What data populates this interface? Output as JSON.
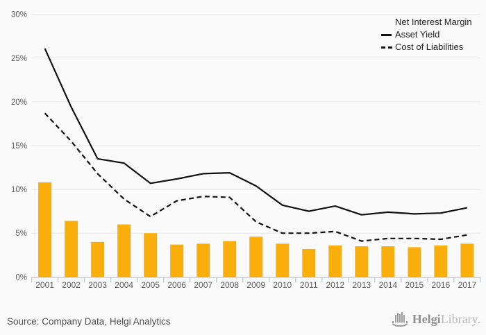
{
  "chart_data": {
    "type": "bar",
    "title": "",
    "categories": [
      "2001",
      "2002",
      "2003",
      "2004",
      "2005",
      "2006",
      "2007",
      "2008",
      "2009",
      "2010",
      "2011",
      "2012",
      "2013",
      "2014",
      "2015",
      "2016",
      "2017"
    ],
    "series": [
      {
        "name": "Net Interest Margin",
        "type": "bar",
        "color": "#F9AE0C",
        "values": [
          10.8,
          6.4,
          4.0,
          6.0,
          5.0,
          3.7,
          3.8,
          4.1,
          4.6,
          3.8,
          3.2,
          3.6,
          3.5,
          3.5,
          3.4,
          3.6,
          3.8
        ]
      },
      {
        "name": "Asset Yield",
        "type": "line",
        "line_style": "solid",
        "color": "#111111",
        "values": [
          26.1,
          19.4,
          13.5,
          13.0,
          10.7,
          11.2,
          11.8,
          11.9,
          10.4,
          8.2,
          7.5,
          8.1,
          7.1,
          7.4,
          7.2,
          7.3,
          7.9
        ]
      },
      {
        "name": "Cost of Liabilities",
        "type": "line",
        "line_style": "dashed",
        "color": "#111111",
        "values": [
          18.7,
          15.5,
          11.8,
          8.9,
          6.9,
          8.7,
          9.2,
          9.1,
          6.3,
          5.0,
          5.0,
          5.2,
          4.1,
          4.4,
          4.4,
          4.3,
          4.8
        ]
      }
    ],
    "ylim": [
      0,
      30
    ],
    "ytick_step": 5,
    "ytick_labels": [
      "0%",
      "5%",
      "10%",
      "15%",
      "20%",
      "25%",
      "30%"
    ],
    "grid": "horizontal",
    "grid_color": "#e8e8e8",
    "axis_color": "#bcc7d8",
    "label_color": "#595959",
    "legend_position": "top-right"
  },
  "footer": {
    "source": "Source: Company Data, Helgi Analytics",
    "logo": {
      "part1": "Helgi",
      "part2": "Library."
    }
  }
}
